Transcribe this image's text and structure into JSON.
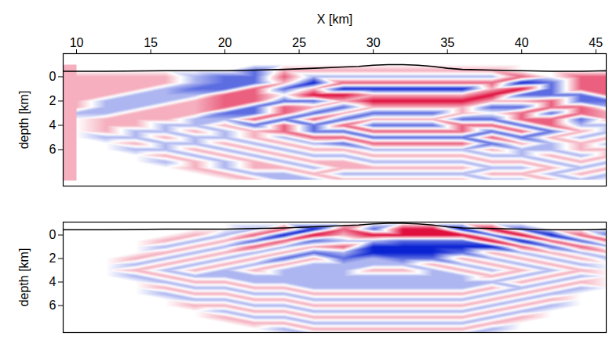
{
  "chart_data": [
    {
      "type": "heatmap",
      "x_label": "X [km]",
      "y_label": "depth [km]",
      "xlim": [
        9.1,
        45.7
      ],
      "ylim": [
        -1.9,
        9.0
      ],
      "xticks": [
        10,
        15,
        20,
        25,
        30,
        35,
        40,
        45
      ],
      "yticks": [
        0,
        2,
        4,
        6
      ],
      "x": [
        10,
        12,
        14,
        16,
        18,
        20,
        22,
        24,
        26,
        28,
        30,
        32,
        34,
        36,
        38,
        40,
        42,
        44,
        46
      ],
      "y": [
        -1,
        -0.5,
        0,
        0.5,
        1,
        1.5,
        2,
        2.5,
        3,
        3.5,
        4,
        4.5,
        5,
        5.5,
        6,
        6.5,
        7,
        7.5,
        8,
        8.5
      ],
      "cells": [
        [
          0,
          0,
          0,
          0,
          0,
          0,
          0,
          0,
          0,
          0,
          0,
          0,
          0,
          0,
          0,
          0,
          0,
          0,
          0
        ],
        [
          0,
          0,
          0,
          0,
          0,
          0,
          -2,
          1,
          1,
          1,
          1,
          1,
          1,
          1,
          1,
          0,
          0,
          0,
          0
        ],
        [
          1,
          1,
          1,
          1,
          -1,
          -2,
          -2,
          2,
          -1,
          -1,
          -1,
          -1,
          -1,
          -1,
          -1,
          2,
          0,
          2,
          2
        ],
        [
          1,
          1,
          1,
          1,
          -1,
          -2,
          -2,
          1,
          -3,
          2,
          2,
          2,
          2,
          2,
          2,
          -3,
          -2,
          2,
          2
        ],
        [
          1,
          1,
          1,
          -1,
          -2,
          -2,
          2,
          -2,
          1,
          -3,
          -3,
          -3,
          -3,
          -3,
          1,
          3,
          -2,
          2,
          2
        ],
        [
          1,
          1,
          -1,
          -1,
          -1,
          2,
          2,
          0,
          3,
          3,
          1,
          1,
          1,
          1,
          3,
          -2,
          -2,
          -2,
          2
        ],
        [
          1,
          -1,
          -1,
          -1,
          1,
          2,
          2,
          -2,
          -2,
          1,
          3,
          3,
          3,
          3,
          1,
          1,
          2,
          -2,
          -2
        ],
        [
          1,
          -1,
          -1,
          1,
          1,
          2,
          -2,
          2,
          1,
          -2,
          1,
          1,
          1,
          1,
          -2,
          -2,
          2,
          2,
          -1
        ],
        [
          -1,
          -1,
          1,
          1,
          1,
          -2,
          -2,
          2,
          -2,
          1,
          -2,
          -2,
          -2,
          1,
          0,
          2,
          -2,
          2,
          1
        ],
        [
          0,
          1,
          1,
          1,
          -1,
          -1,
          2,
          -2,
          2,
          -2,
          1,
          1,
          1,
          -2,
          -2,
          2,
          2,
          -2,
          1
        ],
        [
          0,
          1,
          1,
          -1,
          -1,
          1,
          -2,
          2,
          -2,
          2,
          -2,
          -2,
          -2,
          2,
          2,
          -2,
          2,
          -1,
          -1
        ],
        [
          0,
          1,
          -1,
          -1,
          1,
          -1,
          1,
          2,
          -2,
          -2,
          2,
          2,
          2,
          2,
          -2,
          2,
          -2,
          1,
          -1
        ],
        [
          0,
          -1,
          -1,
          1,
          -1,
          -1,
          1,
          -1,
          2,
          2,
          -2,
          -2,
          -2,
          -2,
          2,
          -2,
          1,
          -1,
          1
        ],
        [
          0,
          0,
          1,
          -1,
          -1,
          1,
          -1,
          1,
          -1,
          -2,
          2,
          2,
          2,
          2,
          -2,
          1,
          -1,
          1,
          -1
        ],
        [
          0,
          0,
          -1,
          -1,
          1,
          -1,
          1,
          -1,
          1,
          1,
          -1,
          -1,
          -1,
          -1,
          1,
          -1,
          -1,
          1,
          1
        ],
        [
          0,
          0,
          0,
          1,
          -1,
          1,
          -1,
          1,
          -1,
          -1,
          1,
          1,
          1,
          1,
          -1,
          -1,
          1,
          -1,
          1
        ],
        [
          0,
          0,
          0,
          -1,
          1,
          -1,
          1,
          -1,
          1,
          1,
          -1,
          -1,
          -1,
          -1,
          1,
          1,
          -1,
          1,
          -1
        ],
        [
          0,
          0,
          0,
          0,
          1,
          -1,
          1,
          1,
          -1,
          1,
          1,
          1,
          1,
          1,
          -1,
          -1,
          1,
          -1,
          1
        ],
        [
          0,
          0,
          0,
          0,
          0,
          1,
          -1,
          -1,
          1,
          -1,
          -1,
          -1,
          -1,
          -1,
          1,
          1,
          -1,
          1,
          -1
        ],
        [
          0,
          0,
          0,
          0,
          0,
          0,
          1,
          -1,
          -1,
          1,
          1,
          1,
          1,
          1,
          -1,
          -1,
          1,
          -1,
          0
        ]
      ],
      "series": [
        {
          "type": "line",
          "color": "#000000",
          "x": [
            9,
            12,
            16,
            20,
            22,
            24,
            26,
            28,
            29,
            30,
            31,
            32,
            33,
            34,
            35,
            36,
            38,
            40,
            42,
            44,
            46
          ],
          "values": [
            -0.45,
            -0.45,
            -0.5,
            -0.5,
            -0.55,
            -0.6,
            -0.7,
            -0.8,
            -0.85,
            -0.95,
            -1.0,
            -1.0,
            -0.95,
            -0.85,
            -0.7,
            -0.6,
            -0.55,
            -0.5,
            -0.45,
            -0.45,
            -0.5
          ]
        }
      ]
    },
    {
      "type": "heatmap",
      "y_label": "depth [km]",
      "tick_labels": "y",
      "xlim": [
        9.1,
        45.7
      ],
      "ylim": [
        -1.1,
        8.3
      ],
      "yticks": [
        0,
        2,
        4,
        6
      ],
      "x": [
        10,
        12,
        14,
        16,
        18,
        20,
        22,
        24,
        26,
        28,
        30,
        32,
        34,
        36,
        38,
        40,
        42,
        44,
        46
      ],
      "y": [
        -1,
        -0.5,
        0,
        0.5,
        1,
        1.5,
        2,
        2.5,
        3,
        3.5,
        4,
        4.5,
        5,
        5.5,
        6,
        6.5,
        7,
        7.5,
        8,
        8.5
      ],
      "cells": [
        [
          0,
          0,
          0,
          0,
          0,
          0,
          0,
          0,
          0,
          0,
          0,
          0,
          0,
          0,
          0,
          0,
          0,
          0,
          0
        ],
        [
          0,
          0,
          0,
          0,
          0,
          0,
          -1,
          2,
          -3,
          2,
          -2,
          3,
          3,
          -3,
          3,
          -2,
          0,
          0,
          0
        ],
        [
          0,
          0,
          0,
          0,
          1,
          -1,
          2,
          -3,
          3,
          1,
          3,
          3,
          3,
          3,
          -2,
          3,
          -3,
          2,
          -2
        ],
        [
          0,
          0,
          0,
          1,
          -1,
          1,
          -2,
          2,
          -2,
          -1,
          -1,
          -2,
          -2,
          -2,
          3,
          -3,
          2,
          -2,
          2
        ],
        [
          0,
          0,
          0,
          -1,
          1,
          -1,
          2,
          -1,
          1,
          2,
          -3,
          -3,
          -3,
          -3,
          -3,
          2,
          -2,
          2,
          -1
        ],
        [
          0,
          0,
          0,
          1,
          -1,
          1,
          -1,
          1,
          -2,
          -1,
          -3,
          -3,
          -3,
          -2,
          1,
          -1,
          1,
          -1,
          1
        ],
        [
          0,
          0,
          1,
          -1,
          1,
          -1,
          1,
          -2,
          1,
          -2,
          -1,
          -2,
          -2,
          1,
          -1,
          1,
          -1,
          1,
          -1
        ],
        [
          0,
          0,
          -1,
          1,
          -1,
          1,
          -1,
          1,
          -1,
          -1,
          -1,
          -1,
          1,
          -1,
          1,
          -1,
          1,
          -1,
          0
        ],
        [
          0,
          0,
          1,
          -1,
          1,
          -1,
          1,
          -1,
          -1,
          -1,
          1,
          1,
          -1,
          1,
          -1,
          1,
          -1,
          1,
          0
        ],
        [
          0,
          0,
          -1,
          1,
          -1,
          -1,
          -1,
          -1,
          -1,
          -1,
          -1,
          -1,
          -1,
          -1,
          1,
          -1,
          1,
          -1,
          0
        ],
        [
          0,
          0,
          0,
          -1,
          1,
          1,
          -1,
          -1,
          -1,
          -1,
          -1,
          -1,
          -1,
          -1,
          -1,
          1,
          -1,
          1,
          0
        ],
        [
          0,
          0,
          0,
          1,
          -1,
          -1,
          1,
          1,
          -1,
          -1,
          -1,
          -1,
          -1,
          -1,
          1,
          -1,
          1,
          -1,
          0
        ],
        [
          0,
          0,
          0,
          -1,
          1,
          1,
          -1,
          -1,
          1,
          1,
          1,
          1,
          1,
          1,
          -1,
          1,
          -1,
          0,
          0
        ],
        [
          0,
          0,
          0,
          0,
          -1,
          -1,
          1,
          1,
          -1,
          -1,
          -1,
          -1,
          -1,
          -1,
          1,
          -1,
          1,
          0,
          0
        ],
        [
          0,
          0,
          0,
          0,
          1,
          1,
          -1,
          -1,
          1,
          1,
          1,
          1,
          1,
          1,
          -1,
          1,
          -1,
          0,
          0
        ],
        [
          0,
          0,
          0,
          0,
          0,
          -1,
          1,
          1,
          -1,
          -1,
          -1,
          -1,
          -1,
          -1,
          1,
          -1,
          0,
          0,
          0
        ],
        [
          0,
          0,
          0,
          0,
          0,
          1,
          -1,
          -1,
          1,
          1,
          1,
          1,
          1,
          1,
          -1,
          1,
          0,
          0,
          0
        ],
        [
          0,
          0,
          0,
          0,
          0,
          0,
          1,
          1,
          -1,
          -1,
          -1,
          -1,
          -1,
          -1,
          1,
          0,
          0,
          0,
          0
        ],
        [
          0,
          0,
          0,
          0,
          0,
          0,
          0,
          -1,
          1,
          1,
          1,
          1,
          1,
          1,
          -1,
          0,
          0,
          0,
          0
        ],
        [
          0,
          0,
          0,
          0,
          0,
          0,
          0,
          0,
          -1,
          -1,
          -1,
          -1,
          -1,
          -1,
          0,
          0,
          0,
          0,
          0
        ]
      ],
      "series": [
        {
          "type": "line",
          "color": "#000000",
          "x": [
            9,
            12,
            16,
            20,
            22,
            24,
            26,
            28,
            29,
            30,
            31,
            32,
            33,
            34,
            35,
            36,
            38,
            40,
            42,
            44,
            46
          ],
          "values": [
            -0.45,
            -0.45,
            -0.5,
            -0.5,
            -0.55,
            -0.6,
            -0.7,
            -0.8,
            -0.85,
            -0.95,
            -1.0,
            -1.0,
            -0.95,
            -0.85,
            -0.7,
            -0.6,
            -0.55,
            -0.5,
            -0.45,
            -0.45,
            -0.5
          ]
        }
      ]
    }
  ]
}
